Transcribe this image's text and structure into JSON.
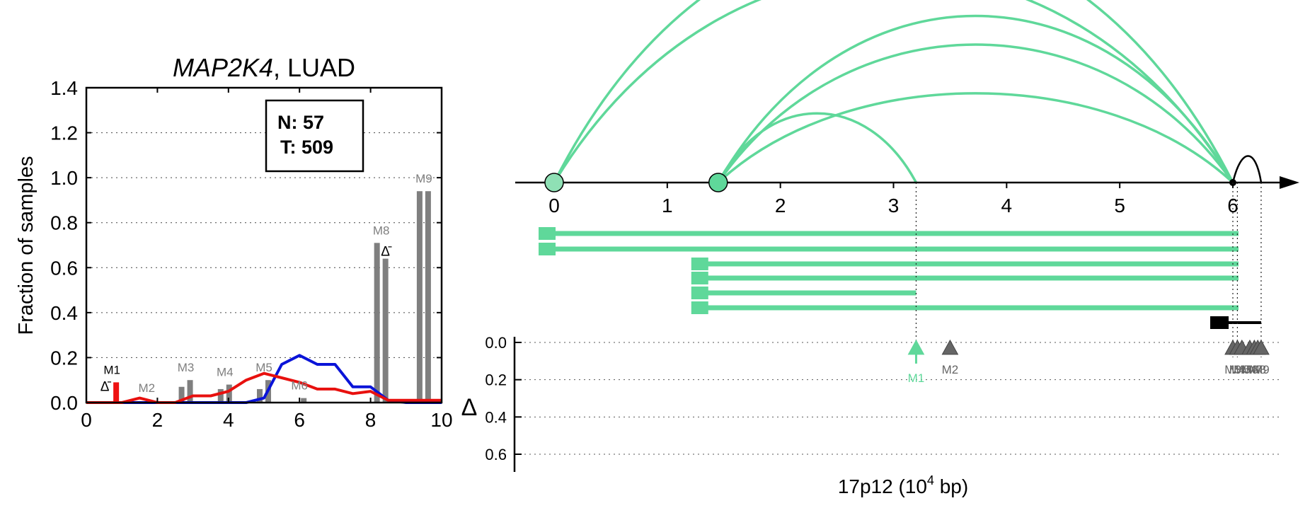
{
  "left_panel": {
    "title_gene": "MAP2K4",
    "title_rest": ", LUAD",
    "ylabel": "Fraction of samples",
    "info_box": {
      "n_label": "N: 57",
      "t_label": "T: 509"
    },
    "delta_symbol": "Δ̄"
  },
  "right_panel": {
    "xlabel_main": "17p12 (10",
    "xlabel_exp": "4",
    "xlabel_tail": " bp)",
    "delta_axis_label": "Δ"
  },
  "colors": {
    "normal_line": "#0a14d8",
    "tumor_line": "#e8100e",
    "bar_gray": "#7f7f7f",
    "accent_green": "#5fd89a",
    "black": "#000000"
  },
  "chart_data": [
    {
      "type": "bar",
      "title": "MAP2K4, LUAD",
      "ylabel": "Fraction of samples",
      "xlim": [
        0,
        10
      ],
      "ylim": [
        0,
        1.4
      ],
      "xticks": [
        "0",
        "2",
        "4",
        "6",
        "8",
        "10"
      ],
      "yticks": [
        "0.0",
        "0.2",
        "0.4",
        "0.6",
        "0.8",
        "1.0",
        "1.2",
        "1.4"
      ],
      "grid": "horizontal dotted",
      "bar_pairs": [
        {
          "label": "M1",
          "x": 0.72,
          "normal": 0.0,
          "tumor": 0.09,
          "highlight": true,
          "delta_marker": true
        },
        {
          "label": "M2",
          "x": 1.7,
          "normal": 0.0,
          "tumor": 0.01,
          "highlight": false,
          "delta_marker": false
        },
        {
          "label": "M3",
          "x": 2.8,
          "normal": 0.07,
          "tumor": 0.1,
          "highlight": false,
          "delta_marker": false
        },
        {
          "label": "M4",
          "x": 3.9,
          "normal": 0.06,
          "tumor": 0.08,
          "highlight": false,
          "delta_marker": false
        },
        {
          "label": "M5",
          "x": 5.0,
          "normal": 0.06,
          "tumor": 0.1,
          "highlight": false,
          "delta_marker": false
        },
        {
          "label": "M6",
          "x": 6.0,
          "normal": 0.0,
          "tumor": 0.02,
          "highlight": false,
          "delta_marker": false
        },
        {
          "label": "M8",
          "x": 8.3,
          "normal": 0.71,
          "tumor": 0.64,
          "highlight": false,
          "delta_marker": true
        },
        {
          "label": "M9",
          "x": 9.5,
          "normal": 0.94,
          "tumor": 0.94,
          "highlight": false,
          "delta_marker": false
        }
      ],
      "series": [
        {
          "color": "#0a14d8",
          "points": [
            [
              0,
              0
            ],
            [
              0.5,
              0
            ],
            [
              1,
              0
            ],
            [
              1.5,
              0
            ],
            [
              2,
              0
            ],
            [
              2.5,
              0
            ],
            [
              3,
              0
            ],
            [
              3.5,
              0
            ],
            [
              4,
              0
            ],
            [
              4.5,
              0
            ],
            [
              5,
              0.02
            ],
            [
              5.5,
              0.17
            ],
            [
              6,
              0.21
            ],
            [
              6.5,
              0.17
            ],
            [
              7,
              0.17
            ],
            [
              7.5,
              0.07
            ],
            [
              8,
              0.07
            ],
            [
              8.5,
              0.01
            ],
            [
              9,
              0
            ],
            [
              9.5,
              0
            ],
            [
              10,
              0
            ]
          ]
        },
        {
          "color": "#e8100e",
          "points": [
            [
              0,
              0
            ],
            [
              0.5,
              0
            ],
            [
              1,
              0
            ],
            [
              1.5,
              0.02
            ],
            [
              2,
              0
            ],
            [
              2.5,
              0
            ],
            [
              3,
              0.03
            ],
            [
              3.5,
              0.03
            ],
            [
              4,
              0.05
            ],
            [
              4.5,
              0.1
            ],
            [
              5,
              0.13
            ],
            [
              5.5,
              0.11
            ],
            [
              6,
              0.09
            ],
            [
              6.5,
              0.06
            ],
            [
              7,
              0.06
            ],
            [
              7.5,
              0.04
            ],
            [
              8,
              0.05
            ],
            [
              8.5,
              0.01
            ],
            [
              9,
              0.01
            ],
            [
              9.5,
              0.01
            ],
            [
              10,
              0.01
            ]
          ]
        }
      ]
    },
    {
      "type": "scatter",
      "xlabel": "17p12 (10^4 bp)",
      "xlim": [
        0,
        6.5
      ],
      "xticks": [
        "0",
        "1",
        "2",
        "3",
        "4",
        "5",
        "6"
      ],
      "delta_ylabel": "Δ",
      "delta_yticks": [
        "0.0",
        "0.2",
        "0.4",
        "0.6"
      ],
      "grid": "horizontal dotted",
      "origin_nodes": [
        0.0,
        1.45
      ],
      "gene_end": 6.0,
      "arcs": [
        {
          "from": 0.0,
          "to": 6.0,
          "height": 0.9
        },
        {
          "from": 0.0,
          "to": 6.0,
          "height": 0.75
        },
        {
          "from": 1.45,
          "to": 6.0,
          "height": 0.6
        },
        {
          "from": 1.45,
          "to": 6.0,
          "height": 0.5
        },
        {
          "from": 1.45,
          "to": 6.0,
          "height": 0.33
        },
        {
          "from": 1.45,
          "to": 3.2,
          "height": 0.26
        }
      ],
      "transcripts": [
        {
          "start": 0.0,
          "end": 6.05
        },
        {
          "start": 0.0,
          "end": 6.05
        },
        {
          "start": 1.35,
          "end": 6.05
        },
        {
          "start": 1.35,
          "end": 6.05
        },
        {
          "start": 1.35,
          "end": 3.2
        },
        {
          "start": 1.35,
          "end": 6.05
        }
      ],
      "black_transcript": {
        "start": 5.95,
        "end": 6.25
      },
      "markers": [
        {
          "label": "M1",
          "x": 3.2,
          "delta": 0.03,
          "highlight": true
        },
        {
          "label": "M2",
          "x": 3.5,
          "delta": 0.03,
          "highlight": false
        },
        {
          "label": "M3",
          "x": 6.0,
          "delta": 0.03,
          "highlight": false
        },
        {
          "label": "M4",
          "x": 6.04,
          "delta": 0.03,
          "highlight": false
        },
        {
          "label": "M5",
          "x": 6.08,
          "delta": 0.03,
          "highlight": false
        },
        {
          "label": "M6",
          "x": 6.15,
          "delta": 0.03,
          "highlight": false
        },
        {
          "label": "M7",
          "x": 6.19,
          "delta": 0.03,
          "highlight": false
        },
        {
          "label": "M8",
          "x": 6.22,
          "delta": 0.03,
          "highlight": false
        },
        {
          "label": "M9",
          "x": 6.25,
          "delta": 0.03,
          "highlight": false
        }
      ]
    }
  ]
}
